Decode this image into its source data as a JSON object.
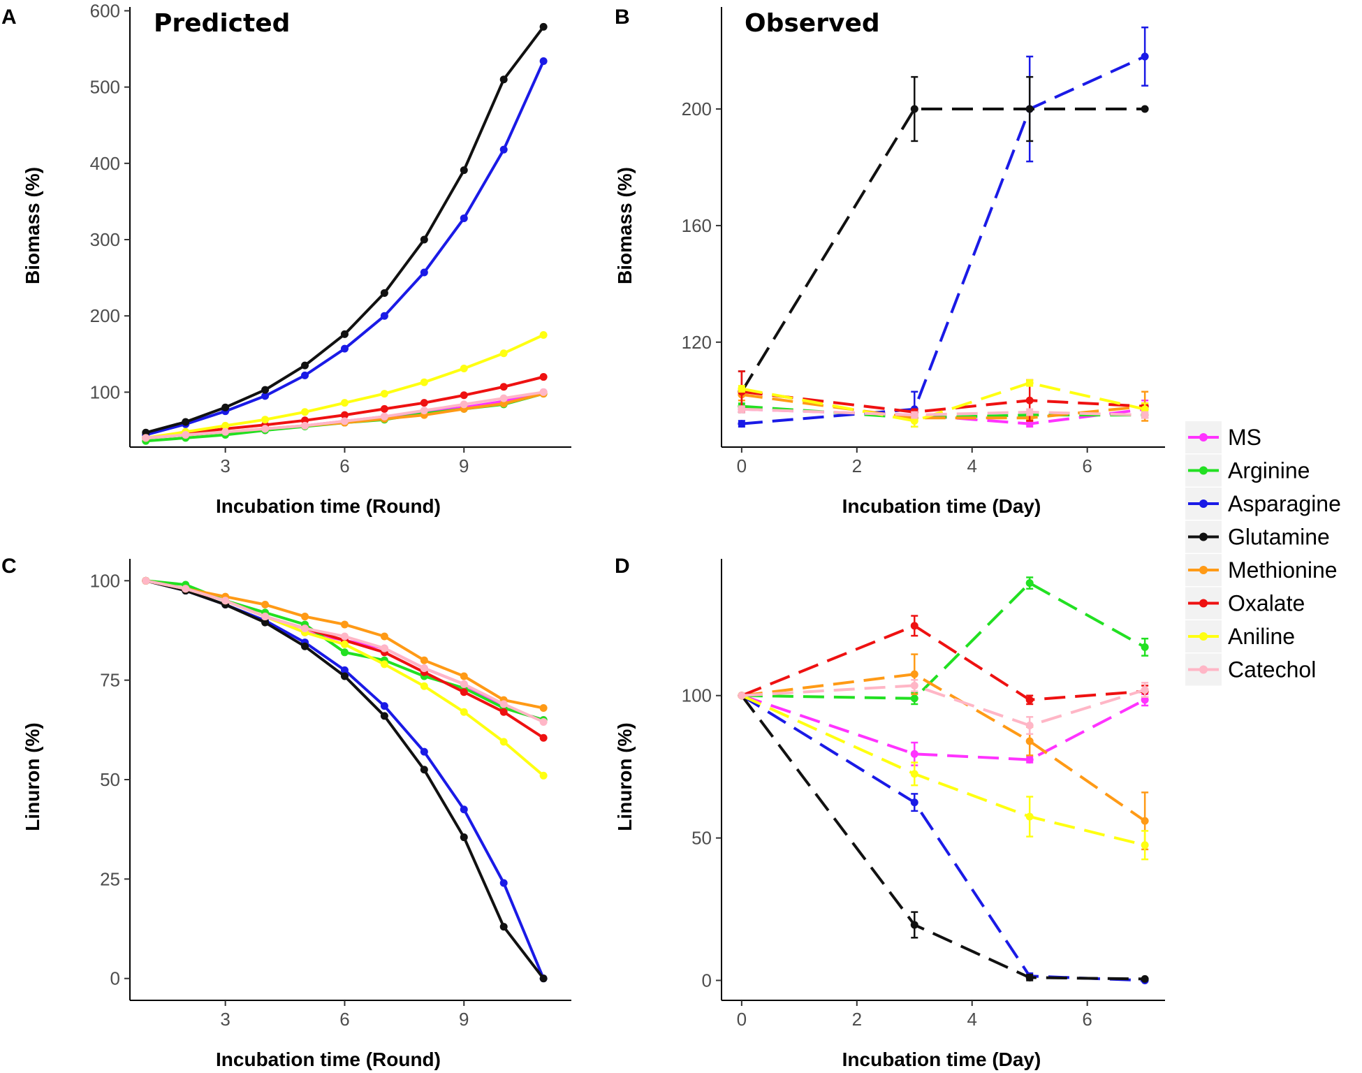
{
  "legend": [
    {
      "name": "MS",
      "color": "#ff33ff"
    },
    {
      "name": "Arginine",
      "color": "#22e022"
    },
    {
      "name": "Asparagine",
      "color": "#1a1ae6"
    },
    {
      "name": "Glutamine",
      "color": "#111111"
    },
    {
      "name": "Methionine",
      "color": "#ff9a16"
    },
    {
      "name": "Oxalate",
      "color": "#ee1111"
    },
    {
      "name": "Aniline",
      "color": "#ffff11"
    },
    {
      "name": "Catechol",
      "color": "#ffb6c6"
    }
  ],
  "chart_data": [
    {
      "panel": "A",
      "type": "line",
      "title": "Predicted",
      "xlabel": "Incubation time (Round)",
      "ylabel": "Biomass (%)",
      "xlim": [
        0.6,
        11.7
      ],
      "ylim": [
        28,
        605
      ],
      "xticks": [
        3,
        6,
        9
      ],
      "yticks": [
        100,
        200,
        300,
        400,
        500,
        600
      ],
      "dashed": false,
      "x": [
        1,
        2,
        3,
        4,
        5,
        6,
        7,
        8,
        9,
        10,
        11
      ],
      "series": [
        {
          "name": "MS",
          "values": [
            40,
            44,
            48,
            50,
            56,
            62,
            68,
            74,
            80,
            88,
            100
          ]
        },
        {
          "name": "Arginine",
          "values": [
            36,
            40,
            44,
            50,
            55,
            60,
            64,
            72,
            78,
            84,
            98
          ]
        },
        {
          "name": "Asparagine",
          "values": [
            44,
            58,
            75,
            95,
            122,
            157,
            200,
            257,
            328,
            418,
            534
          ]
        },
        {
          "name": "Glutamine",
          "values": [
            47,
            61,
            80,
            103,
            135,
            176,
            230,
            300,
            391,
            510,
            579
          ]
        },
        {
          "name": "Methionine",
          "values": [
            40,
            44,
            48,
            52,
            56,
            60,
            65,
            70,
            78,
            85,
            98
          ]
        },
        {
          "name": "Oxalate",
          "values": [
            40,
            46,
            52,
            57,
            63,
            70,
            78,
            86,
            96,
            107,
            120
          ]
        },
        {
          "name": "Aniline",
          "values": [
            40,
            48,
            56,
            64,
            74,
            86,
            98,
            113,
            131,
            151,
            175
          ]
        },
        {
          "name": "Catechol",
          "values": [
            40,
            44,
            48,
            52,
            56,
            62,
            68,
            76,
            84,
            92,
            100
          ]
        }
      ]
    },
    {
      "panel": "B",
      "type": "line",
      "title": "Observed",
      "xlabel": "Incubation time (Day)",
      "ylabel": "Biomass (%)",
      "xlim": [
        -0.35,
        7.35
      ],
      "ylim": [
        84,
        235
      ],
      "xticks": [
        0,
        2,
        4,
        6
      ],
      "yticks": [
        120,
        160,
        200
      ],
      "dashed": true,
      "x": [
        0,
        3,
        5,
        7
      ],
      "series": [
        {
          "name": "MS",
          "values": [
            97,
            95,
            92,
            97
          ],
          "errors": [
            1,
            1,
            1,
            3
          ]
        },
        {
          "name": "Arginine",
          "values": [
            98,
            94,
            95,
            95
          ],
          "errors": [
            1,
            1,
            1,
            1
          ]
        },
        {
          "name": "Asparagine",
          "values": [
            92,
            97,
            200,
            218
          ],
          "errors": [
            1,
            6,
            18,
            10
          ]
        },
        {
          "name": "Glutamine",
          "values": [
            103,
            200,
            200,
            200
          ],
          "errors": [
            7,
            11,
            11,
            0
          ]
        },
        {
          "name": "Methionine",
          "values": [
            102,
            94,
            94,
            98
          ],
          "errors": [
            2,
            1,
            1,
            5
          ]
        },
        {
          "name": "Oxalate",
          "values": [
            103,
            96,
            100,
            98
          ],
          "errors": [
            7,
            1,
            7,
            1
          ]
        },
        {
          "name": "Aniline",
          "values": [
            104,
            93,
            106,
            97
          ],
          "errors": [
            1,
            2,
            1,
            2
          ]
        },
        {
          "name": "Catechol",
          "values": [
            97,
            95,
            96,
            95
          ],
          "errors": [
            1,
            1,
            1,
            1
          ]
        }
      ]
    },
    {
      "panel": "C",
      "type": "line",
      "title": "",
      "xlabel": "Incubation time (Round)",
      "ylabel": "Linuron (%)",
      "xlim": [
        0.6,
        11.7
      ],
      "ylim": [
        -5.5,
        105.5
      ],
      "xticks": [
        3,
        6,
        9
      ],
      "yticks": [
        0,
        25,
        50,
        75,
        100
      ],
      "dashed": false,
      "x": [
        1,
        2,
        3,
        4,
        5,
        6,
        7,
        8,
        9,
        10,
        11
      ],
      "series": [
        {
          "name": "MS",
          "values": [
            100,
            98,
            95,
            91,
            87,
            85,
            83,
            78,
            74,
            68,
            65
          ]
        },
        {
          "name": "Arginine",
          "values": [
            100,
            99,
            95,
            92,
            89,
            82,
            80,
            76,
            73,
            68,
            65
          ]
        },
        {
          "name": "Asparagine",
          "values": [
            100,
            97.5,
            94,
            90,
            84.5,
            77.5,
            68.5,
            57,
            42.5,
            24,
            0
          ]
        },
        {
          "name": "Glutamine",
          "values": [
            100,
            97.5,
            94,
            89.5,
            83.5,
            76,
            66,
            52.5,
            35.5,
            13,
            0
          ]
        },
        {
          "name": "Methionine",
          "values": [
            100,
            98,
            96,
            94,
            91,
            89,
            86,
            80,
            76,
            70,
            68
          ]
        },
        {
          "name": "Oxalate",
          "values": [
            100,
            98,
            95,
            91,
            88,
            85,
            82,
            77,
            72,
            67,
            60.5
          ]
        },
        {
          "name": "Aniline",
          "values": [
            100,
            98,
            95,
            91,
            87,
            84,
            79,
            73.5,
            67,
            59.5,
            51
          ]
        },
        {
          "name": "Catechol",
          "values": [
            100,
            98,
            95,
            91,
            88,
            86,
            83,
            78,
            74,
            69,
            64.5
          ]
        }
      ]
    },
    {
      "panel": "D",
      "type": "line",
      "title": "",
      "xlabel": "Incubation time (Day)",
      "ylabel": "Linuron (%)",
      "xlim": [
        -0.35,
        7.35
      ],
      "ylim": [
        -7,
        148
      ],
      "xticks": [
        0,
        2,
        4,
        6
      ],
      "yticks": [
        0,
        50,
        100
      ],
      "dashed": true,
      "x": [
        0,
        3,
        5,
        7
      ],
      "series": [
        {
          "name": "MS",
          "values": [
            100,
            79.5,
            77.5,
            98.5
          ],
          "errors": [
            0,
            4,
            1,
            2
          ]
        },
        {
          "name": "Arginine",
          "values": [
            100,
            99,
            139.5,
            117
          ],
          "errors": [
            0,
            2,
            2,
            3
          ]
        },
        {
          "name": "Asparagine",
          "values": [
            100,
            62.5,
            1.5,
            0
          ],
          "errors": [
            0,
            3,
            1,
            0
          ]
        },
        {
          "name": "Glutamine",
          "values": [
            100,
            19.5,
            1,
            0.5
          ],
          "errors": [
            0,
            4.5,
            1,
            0
          ]
        },
        {
          "name": "Methionine",
          "values": [
            100,
            107.5,
            84,
            56
          ],
          "errors": [
            0,
            7,
            5,
            10
          ]
        },
        {
          "name": "Oxalate",
          "values": [
            100,
            124.5,
            98.5,
            101.5
          ],
          "errors": [
            0,
            3.5,
            1.5,
            2
          ]
        },
        {
          "name": "Aniline",
          "values": [
            100,
            72.5,
            57.5,
            47.5
          ],
          "errors": [
            0,
            4,
            7,
            5
          ]
        },
        {
          "name": "Catechol",
          "values": [
            100,
            103.5,
            89.5,
            102
          ],
          "errors": [
            0,
            2,
            3,
            2.5
          ]
        }
      ]
    }
  ]
}
